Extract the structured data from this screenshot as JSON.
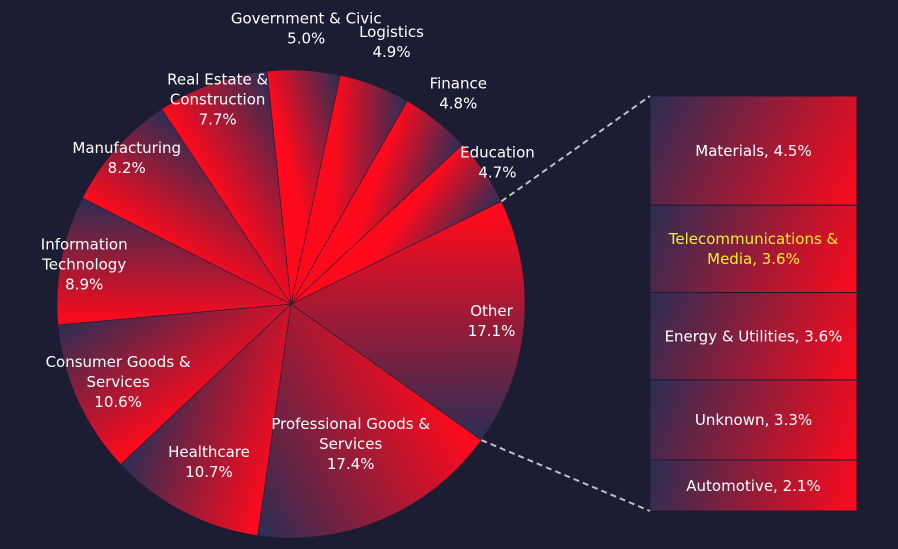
{
  "chart_data": {
    "type": "pie",
    "title": "",
    "pie": {
      "slices": [
        {
          "label": "Other",
          "value": 17.1,
          "display": "17.1%"
        },
        {
          "label": "Professional Goods & Services",
          "value": 17.4,
          "display": "17.4%"
        },
        {
          "label": "Healthcare",
          "value": 10.7,
          "display": "10.7%"
        },
        {
          "label": "Consumer Goods & Services",
          "value": 10.6,
          "display": "10.6%"
        },
        {
          "label": "Information Technology",
          "value": 8.9,
          "display": "8.9%"
        },
        {
          "label": "Manufacturing",
          "value": 8.2,
          "display": "8.2%"
        },
        {
          "label": "Real Estate & Construction",
          "value": 7.7,
          "display": "7.7%"
        },
        {
          "label": "Government & Civic",
          "value": 5.0,
          "display": "5.0%"
        },
        {
          "label": "Logistics",
          "value": 4.9,
          "display": "4.9%"
        },
        {
          "label": "Finance",
          "value": 4.8,
          "display": "4.8%"
        },
        {
          "label": "Education",
          "value": 4.7,
          "display": "4.7%"
        }
      ]
    },
    "breakdown_of": "Other",
    "bar": {
      "segments": [
        {
          "label": "Materials",
          "value": 4.5,
          "display": "Materials, 4.5%"
        },
        {
          "label": "Telecommunications & Media",
          "value": 3.6,
          "display": "Telecommunications & Media, 3.6%",
          "highlight": true
        },
        {
          "label": "Energy & Utilities",
          "value": 3.6,
          "display": "Energy & Utilities, 3.6%"
        },
        {
          "label": "Unknown",
          "value": 3.3,
          "display": "Unknown, 3.3%"
        },
        {
          "label": "Automotive",
          "value": 2.1,
          "display": "Automotive, 2.1%"
        }
      ]
    },
    "colors": {
      "background": "#1c1d33",
      "gradient_dark": "#2b2e55",
      "gradient_bright": "#ff0a1c",
      "label": "#ffffff",
      "highlight_label": "#f4ee2a",
      "connector": "#bfbfbf"
    }
  }
}
